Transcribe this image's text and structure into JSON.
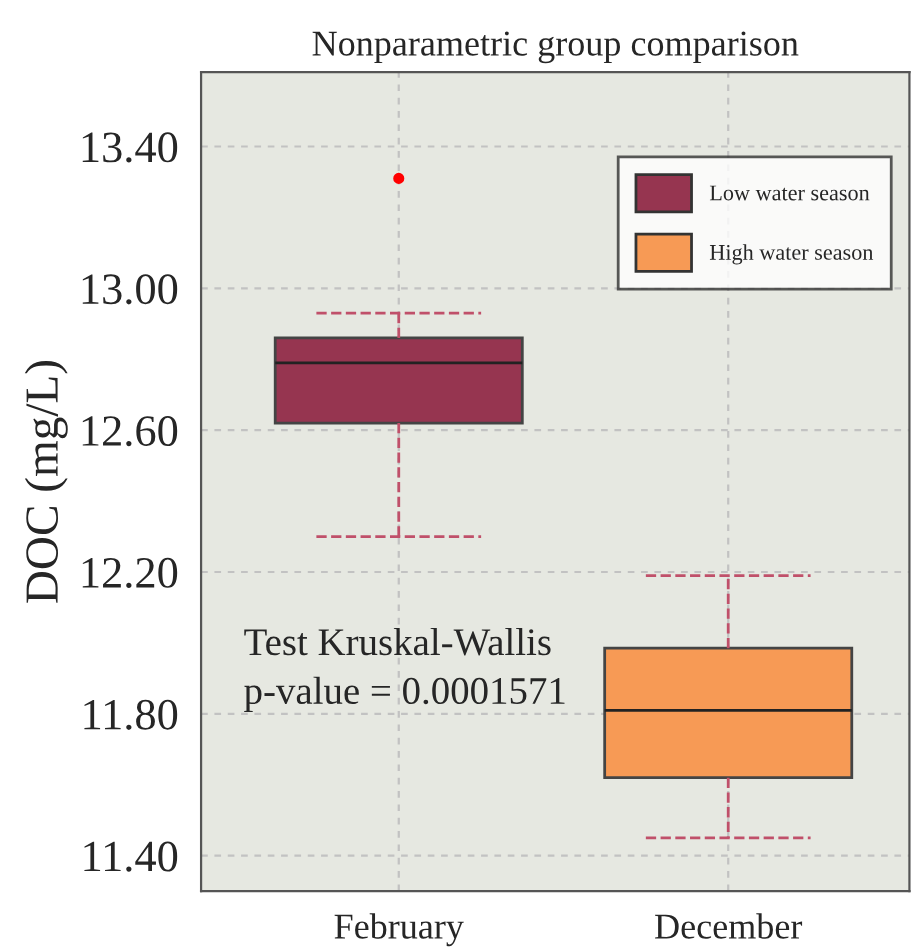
{
  "chart_data": {
    "type": "box",
    "title": "Nonparametric group comparison",
    "ylabel": "DOC (mg/L)",
    "categories": [
      "February",
      "December"
    ],
    "series": [
      {
        "name": "Low water season",
        "color": "#963550",
        "boxes": [
          {
            "low": 12.3,
            "q1": 12.62,
            "median": 12.79,
            "q3": 12.86,
            "high": 12.93,
            "outliers": [
              13.31
            ]
          },
          null
        ]
      },
      {
        "name": "High water season",
        "color": "#f79a55",
        "boxes": [
          null,
          {
            "low": 11.45,
            "q1": 11.62,
            "median": 11.81,
            "q3": 11.985,
            "high": 12.19
          }
        ]
      }
    ],
    "ylim": [
      11.3,
      13.61
    ],
    "yticks": [
      {
        "value": 11.4,
        "label": "11.40"
      },
      {
        "value": 11.8,
        "label": "11.80"
      },
      {
        "value": 12.2,
        "label": "12.20"
      },
      {
        "value": 12.6,
        "label": "12.60"
      },
      {
        "value": 13.0,
        "label": "13.00"
      },
      {
        "value": 13.4,
        "label": "13.40"
      }
    ],
    "grid": true,
    "legend": "top right",
    "annotations": [
      "Test Kruskal-Wallis\np-value = 0.0001571"
    ]
  }
}
